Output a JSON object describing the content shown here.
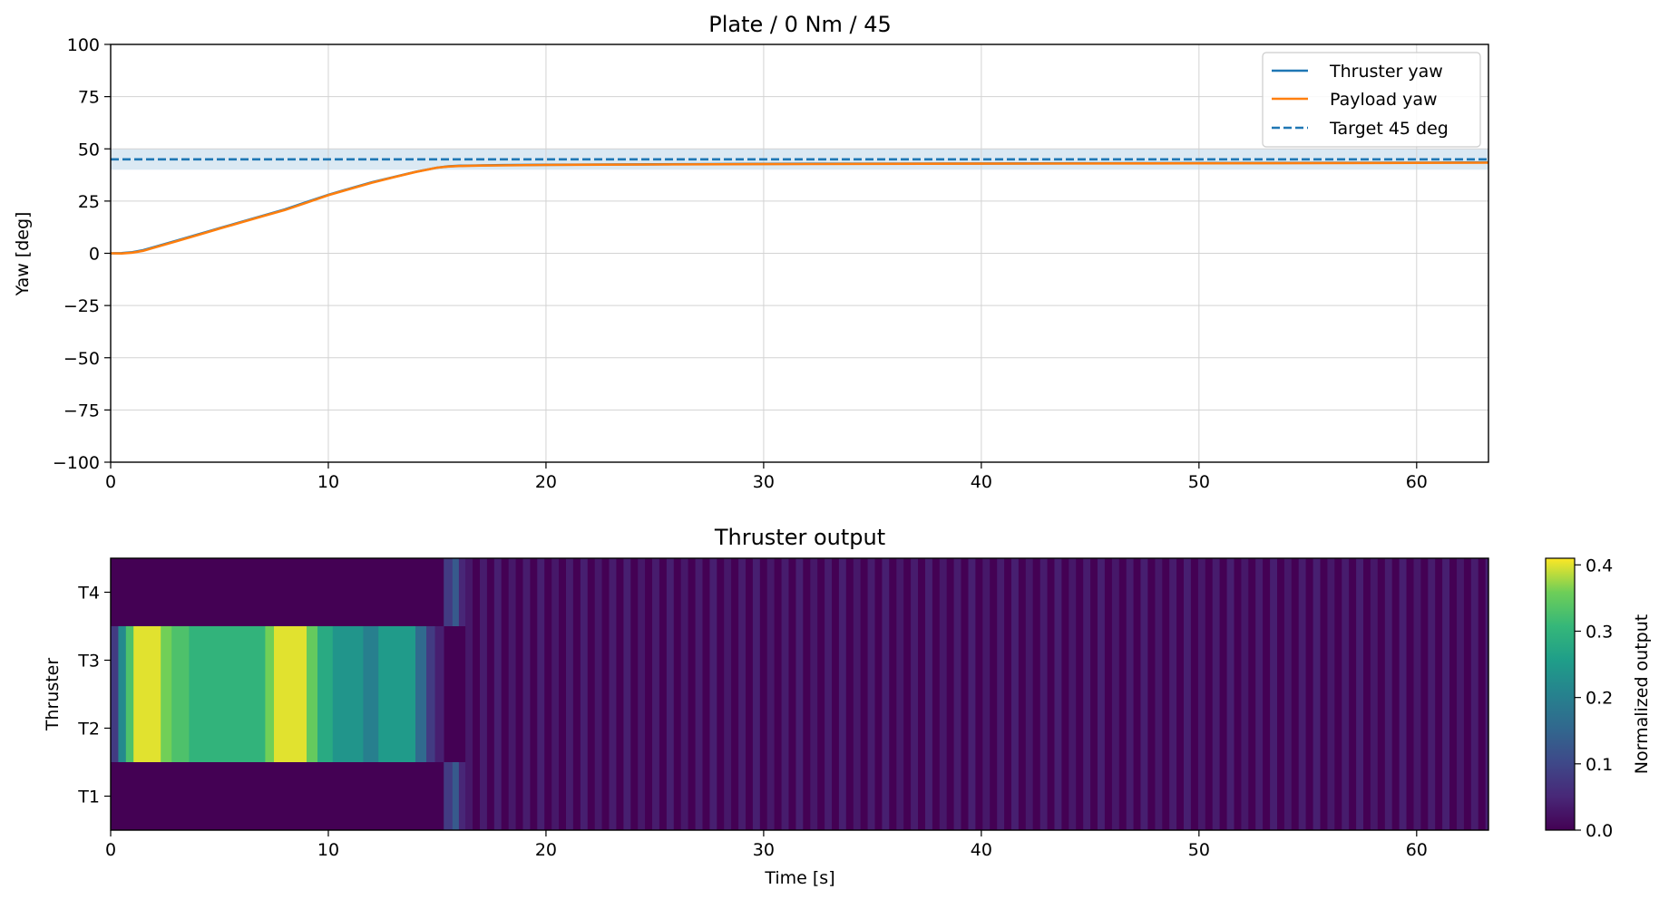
{
  "chart_data": [
    {
      "type": "line",
      "title": "Plate / 0 Nm / 45",
      "xlabel": "",
      "ylabel": "Yaw [deg]",
      "xlim": [
        0,
        63.3
      ],
      "ylim": [
        -100,
        100
      ],
      "xticks": [
        "0",
        "10",
        "20",
        "30",
        "40",
        "50",
        "60"
      ],
      "yticks": [
        "100",
        "75",
        "50",
        "25",
        "0",
        "−25",
        "−50",
        "−75",
        "−100"
      ],
      "grid": true,
      "legend_position": "top-right",
      "target_band": [
        40,
        50
      ],
      "series": [
        {
          "name": "Thruster yaw",
          "color": "#1f77b4",
          "style": "solid",
          "x": [
            0,
            0.5,
            1,
            1.5,
            2,
            3,
            4,
            5,
            6,
            7,
            8,
            9,
            10,
            11,
            12,
            13,
            14,
            15,
            15.5,
            16,
            17,
            18,
            20,
            25,
            30,
            40,
            50,
            60,
            63.3
          ],
          "y": [
            0,
            0.1,
            0.5,
            1.5,
            3,
            6,
            9,
            12,
            15,
            18,
            21,
            24.5,
            28,
            31,
            34,
            36.5,
            39,
            41,
            41.6,
            41.9,
            42.1,
            42.2,
            42.4,
            42.6,
            42.8,
            43,
            43.2,
            43.4,
            43.5
          ]
        },
        {
          "name": "Payload yaw",
          "color": "#ff7f0e",
          "style": "solid",
          "x": [
            0,
            0.5,
            1,
            1.5,
            2,
            3,
            4,
            5,
            6,
            7,
            8,
            9,
            10,
            11,
            12,
            13,
            14,
            15,
            15.5,
            16,
            17,
            18,
            20,
            25,
            30,
            40,
            50,
            60,
            63.3
          ],
          "y": [
            0,
            -0.1,
            0.3,
            1.2,
            2.7,
            5.7,
            8.7,
            11.8,
            14.8,
            17.8,
            20.7,
            24.2,
            27.8,
            30.8,
            33.8,
            36.4,
            38.9,
            41,
            41.5,
            41.8,
            42,
            42.1,
            42.3,
            42.5,
            42.7,
            42.9,
            43.1,
            43.3,
            43.4
          ]
        },
        {
          "name": "Target 45 deg",
          "color": "#1f77b4",
          "style": "dashed",
          "x": [
            0,
            63.3
          ],
          "y": [
            45,
            45
          ]
        }
      ]
    },
    {
      "type": "heatmap",
      "title": "Thruster output",
      "xlabel": "Time [s]",
      "ylabel": "Thruster",
      "xlim": [
        0,
        63.3
      ],
      "xticks": [
        "0",
        "10",
        "20",
        "30",
        "40",
        "50",
        "60"
      ],
      "rows": [
        "T1",
        "T2",
        "T3",
        "T4"
      ],
      "colormap": "viridis",
      "color_range": [
        0,
        0.41
      ],
      "colorbar_label": "Normalized output",
      "colorbar_ticks": [
        "0.0",
        "0.1",
        "0.2",
        "0.3",
        "0.4"
      ],
      "segments": [
        {
          "x0": 0,
          "x1": 0.35,
          "t1": 0,
          "t2": 0.08,
          "t3": 0.08,
          "t4": 0
        },
        {
          "x0": 0.35,
          "x1": 0.7,
          "t1": 0,
          "t2": 0.22,
          "t3": 0.22,
          "t4": 0
        },
        {
          "x0": 0.7,
          "x1": 1.05,
          "t1": 0,
          "t2": 0.33,
          "t3": 0.33,
          "t4": 0
        },
        {
          "x0": 1.05,
          "x1": 2.3,
          "t1": 0,
          "t2": 0.4,
          "t3": 0.4,
          "t4": 0
        },
        {
          "x0": 2.3,
          "x1": 2.8,
          "t1": 0,
          "t2": 0.36,
          "t3": 0.36,
          "t4": 0
        },
        {
          "x0": 2.8,
          "x1": 3.6,
          "t1": 0,
          "t2": 0.33,
          "t3": 0.33,
          "t4": 0
        },
        {
          "x0": 3.6,
          "x1": 7.1,
          "t1": 0,
          "t2": 0.3,
          "t3": 0.3,
          "t4": 0
        },
        {
          "x0": 7.1,
          "x1": 7.5,
          "t1": 0,
          "t2": 0.36,
          "t3": 0.36,
          "t4": 0
        },
        {
          "x0": 7.5,
          "x1": 9.0,
          "t1": 0,
          "t2": 0.4,
          "t3": 0.4,
          "t4": 0
        },
        {
          "x0": 9.0,
          "x1": 9.5,
          "t1": 0,
          "t2": 0.35,
          "t3": 0.35,
          "t4": 0
        },
        {
          "x0": 9.5,
          "x1": 10.2,
          "t1": 0,
          "t2": 0.28,
          "t3": 0.28,
          "t4": 0
        },
        {
          "x0": 10.2,
          "x1": 11.6,
          "t1": 0,
          "t2": 0.24,
          "t3": 0.24,
          "t4": 0
        },
        {
          "x0": 11.6,
          "x1": 12.3,
          "t1": 0,
          "t2": 0.2,
          "t3": 0.2,
          "t4": 0
        },
        {
          "x0": 12.3,
          "x1": 14.0,
          "t1": 0,
          "t2": 0.25,
          "t3": 0.25,
          "t4": 0
        },
        {
          "x0": 14.0,
          "x1": 14.5,
          "t1": 0,
          "t2": 0.16,
          "t3": 0.16,
          "t4": 0
        },
        {
          "x0": 14.5,
          "x1": 14.9,
          "t1": 0,
          "t2": 0.08,
          "t3": 0.08,
          "t4": 0
        },
        {
          "x0": 14.9,
          "x1": 15.3,
          "t1": 0,
          "t2": 0.04,
          "t3": 0.04,
          "t4": 0
        },
        {
          "x0": 15.3,
          "x1": 15.7,
          "t1": 0.08,
          "t2": 0,
          "t3": 0,
          "t4": 0.08
        },
        {
          "x0": 15.7,
          "x1": 16.0,
          "t1": 0.13,
          "t2": 0,
          "t3": 0,
          "t4": 0.13
        },
        {
          "x0": 16.0,
          "x1": 16.3,
          "t1": 0.05,
          "t2": 0,
          "t3": 0,
          "t4": 0.05
        }
      ],
      "pulse_region": [
        16.3,
        63.3
      ],
      "pulse_period": 0.66,
      "pulse_level": 0.04
    }
  ]
}
